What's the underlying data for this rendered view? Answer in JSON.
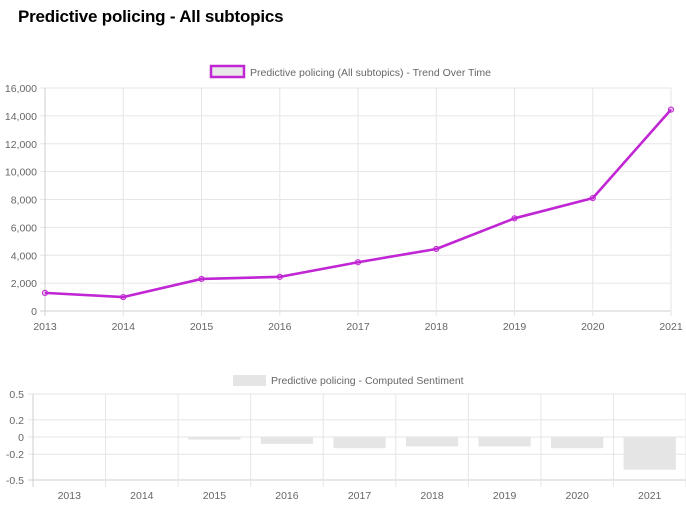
{
  "page": {
    "title": "Predictive policing - All subtopics"
  },
  "chart_data": [
    {
      "type": "line",
      "legend": "Predictive policing (All subtopics) - Trend Over Time",
      "legend_position": "top",
      "x": [
        "2013",
        "2014",
        "2015",
        "2016",
        "2017",
        "2018",
        "2019",
        "2020",
        "2021"
      ],
      "series": [
        {
          "name": "Predictive policing (All subtopics) - Trend Over Time",
          "values": [
            1300,
            1000,
            2300,
            2450,
            3500,
            4450,
            6650,
            8100,
            14450
          ]
        }
      ],
      "ylim": [
        0,
        16000
      ],
      "yticks": [
        0,
        2000,
        4000,
        6000,
        8000,
        10000,
        12000,
        14000,
        16000
      ],
      "ytick_labels": [
        "0",
        "2,000",
        "4,000",
        "6,000",
        "8,000",
        "10,000",
        "12,000",
        "14,000",
        "16,000"
      ],
      "grid": true,
      "colors": {
        "line": "#c026d3",
        "legend_fill": "#e8e8e8",
        "grid": "#e6e6e6",
        "axis_text": "#666666"
      }
    },
    {
      "type": "bar",
      "legend": "Predictive policing - Computed Sentiment",
      "legend_position": "top",
      "categories": [
        "2013",
        "2014",
        "2015",
        "2016",
        "2017",
        "2018",
        "2019",
        "2020",
        "2021"
      ],
      "series": [
        {
          "name": "Predictive policing - Computed Sentiment",
          "values": [
            0,
            0,
            -0.03,
            -0.08,
            -0.13,
            -0.11,
            -0.11,
            -0.13,
            -0.38
          ]
        }
      ],
      "ylim": [
        -0.5,
        0.5
      ],
      "yticks": [
        0.5,
        0.2,
        0,
        -0.2,
        -0.5
      ],
      "ytick_labels": [
        "0.5",
        "0.2",
        "0",
        "-0.2",
        "-0.5"
      ],
      "grid": true,
      "colors": {
        "bar": "#e5e5e5",
        "grid": "#e6e6e6",
        "axis_text": "#666666"
      }
    }
  ]
}
